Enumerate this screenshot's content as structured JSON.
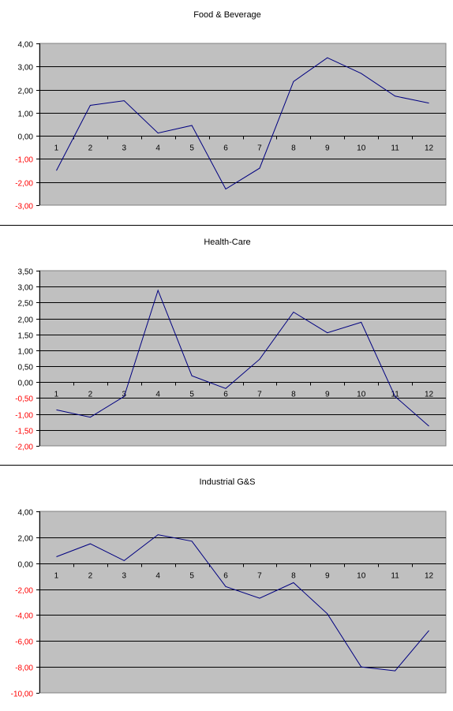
{
  "colors": {
    "plot_background": "#c0c0c0",
    "series_line": "#000080",
    "negative_tick": "#ff0000",
    "positive_tick": "#000000"
  },
  "chart_data": [
    {
      "type": "line",
      "title": "Food & Beverage",
      "xlabel": "",
      "ylabel": "",
      "categories": [
        "1",
        "2",
        "3",
        "4",
        "5",
        "6",
        "7",
        "8",
        "9",
        "10",
        "11",
        "12"
      ],
      "values": [
        -1.5,
        1.32,
        1.52,
        0.12,
        0.45,
        -2.3,
        -1.4,
        2.35,
        3.38,
        2.7,
        1.72,
        1.42
      ],
      "ylim": [
        -3,
        4
      ],
      "yticks": [
        "4,00",
        "3,00",
        "2,00",
        "1,00",
        "0,00",
        "-1,00",
        "-2,00",
        "-3,00"
      ],
      "ytick_values": [
        4,
        3,
        2,
        1,
        0,
        -1,
        -2,
        -3
      ],
      "grid": true,
      "legend": "none"
    },
    {
      "type": "line",
      "title": "Health-Care",
      "xlabel": "",
      "ylabel": "",
      "categories": [
        "1",
        "2",
        "3",
        "4",
        "5",
        "6",
        "7",
        "8",
        "9",
        "10",
        "11",
        "12"
      ],
      "values": [
        -0.87,
        -1.1,
        -0.45,
        2.88,
        0.2,
        -0.2,
        0.72,
        2.2,
        1.55,
        1.88,
        -0.45,
        -1.38
      ],
      "ylim": [
        -2,
        3.5
      ],
      "yticks": [
        "3,50",
        "3,00",
        "2,50",
        "2,00",
        "1,50",
        "1,00",
        "0,50",
        "0,00",
        "-0,50",
        "-1,00",
        "-1,50",
        "-2,00"
      ],
      "ytick_values": [
        3.5,
        3,
        2.5,
        2,
        1.5,
        1,
        0.5,
        0,
        -0.5,
        -1,
        -1.5,
        -2
      ],
      "grid": true,
      "legend": "none"
    },
    {
      "type": "line",
      "title": "Industrial G&S",
      "xlabel": "",
      "ylabel": "",
      "categories": [
        "1",
        "2",
        "3",
        "4",
        "5",
        "6",
        "7",
        "8",
        "9",
        "10",
        "11",
        "12"
      ],
      "values": [
        0.5,
        1.5,
        0.2,
        2.2,
        1.7,
        -1.8,
        -2.7,
        -1.5,
        -3.9,
        -8.0,
        -8.3,
        -5.2
      ],
      "ylim": [
        -10,
        4
      ],
      "yticks": [
        "4,00",
        "2,00",
        "0,00",
        "-2,00",
        "-4,00",
        "-6,00",
        "-8,00",
        "-10,00"
      ],
      "ytick_values": [
        4,
        2,
        0,
        -2,
        -4,
        -6,
        -8,
        -10
      ],
      "grid": true,
      "legend": "none"
    }
  ]
}
